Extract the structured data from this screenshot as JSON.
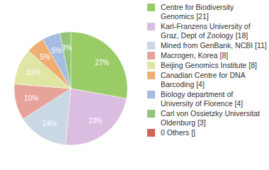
{
  "chart_data": {
    "type": "pie",
    "categories": [
      "Centre for Biodiversity Genomics [21]",
      "Karl-Franzens University of Graz, Dept of Zoology [18]",
      "Mined from GenBank, NCBI [11]",
      "Macrogen, Korea [8]",
      "Beijing Genomics Institute [8]",
      "Canadian Centre for DNA Barcoding [4]",
      "Biology department of University of Florence [4]",
      "Carl von Ossietzky Universitat Oldenburg [3]",
      "0 Others []"
    ],
    "values": [
      27,
      23,
      14,
      10,
      10,
      5,
      5,
      3,
      0
    ],
    "value_labels": [
      "27%",
      "23%",
      "14%",
      "10%",
      "10%",
      "5%",
      "5%",
      "3%",
      null
    ],
    "colors": [
      "#99cc66",
      "#dcbde2",
      "#cad8e6",
      "#e6a39a",
      "#dfe5a2",
      "#f0ad70",
      "#a4bde0",
      "#93c47a",
      "#cc6655"
    ],
    "data_labels": true,
    "legend": "right"
  }
}
